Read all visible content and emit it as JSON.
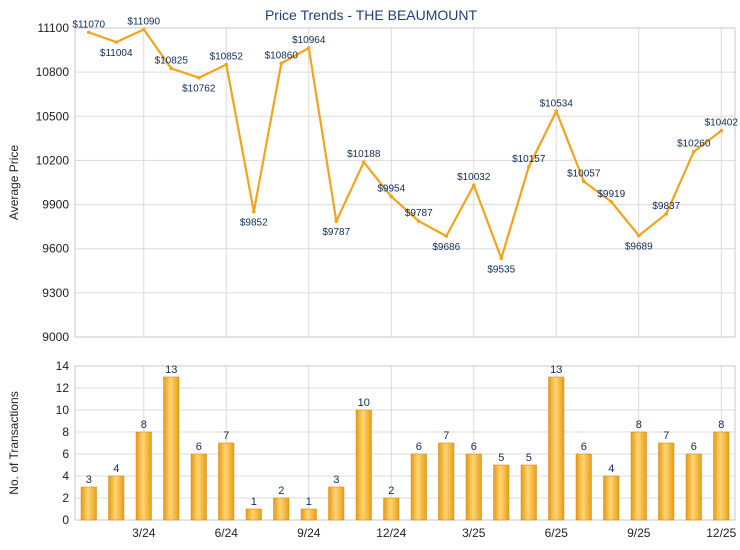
{
  "chart_data": [
    {
      "type": "line",
      "title": "Price Trends - THE BEAUMOUNT",
      "xlabel": "",
      "ylabel": "Average Price",
      "ylim": [
        9000,
        11100
      ],
      "yticks": [
        9000,
        9300,
        9600,
        9900,
        10200,
        10500,
        10800,
        11100
      ],
      "grid": true,
      "color": "#f5a31a",
      "label_prefix": "$",
      "values": [
        11070,
        11004,
        11090,
        10825,
        10762,
        10852,
        9852,
        10860,
        10964,
        9787,
        10188,
        9954,
        9787,
        9686,
        10032,
        9535,
        10157,
        10534,
        10057,
        9919,
        9689,
        9837,
        10260,
        10402
      ]
    },
    {
      "type": "bar",
      "xlabel": "",
      "ylabel": "No. of Transactions",
      "ylim": [
        0,
        14
      ],
      "yticks": [
        0,
        2,
        4,
        6,
        8,
        10,
        12,
        14
      ],
      "grid": true,
      "color": "#f5a31a",
      "values": [
        3,
        4,
        8,
        13,
        6,
        7,
        1,
        2,
        1,
        3,
        10,
        2,
        6,
        7,
        6,
        5,
        5,
        13,
        6,
        4,
        8,
        7,
        6,
        8
      ],
      "xtick_labels": [
        {
          "index": 2,
          "label": "3/24"
        },
        {
          "index": 5,
          "label": "6/24"
        },
        {
          "index": 8,
          "label": "9/24"
        },
        {
          "index": 11,
          "label": "12/24"
        },
        {
          "index": 14,
          "label": "3/25"
        },
        {
          "index": 17,
          "label": "6/25"
        },
        {
          "index": 20,
          "label": "9/25"
        },
        {
          "index": 23,
          "label": "12/25"
        }
      ]
    }
  ]
}
